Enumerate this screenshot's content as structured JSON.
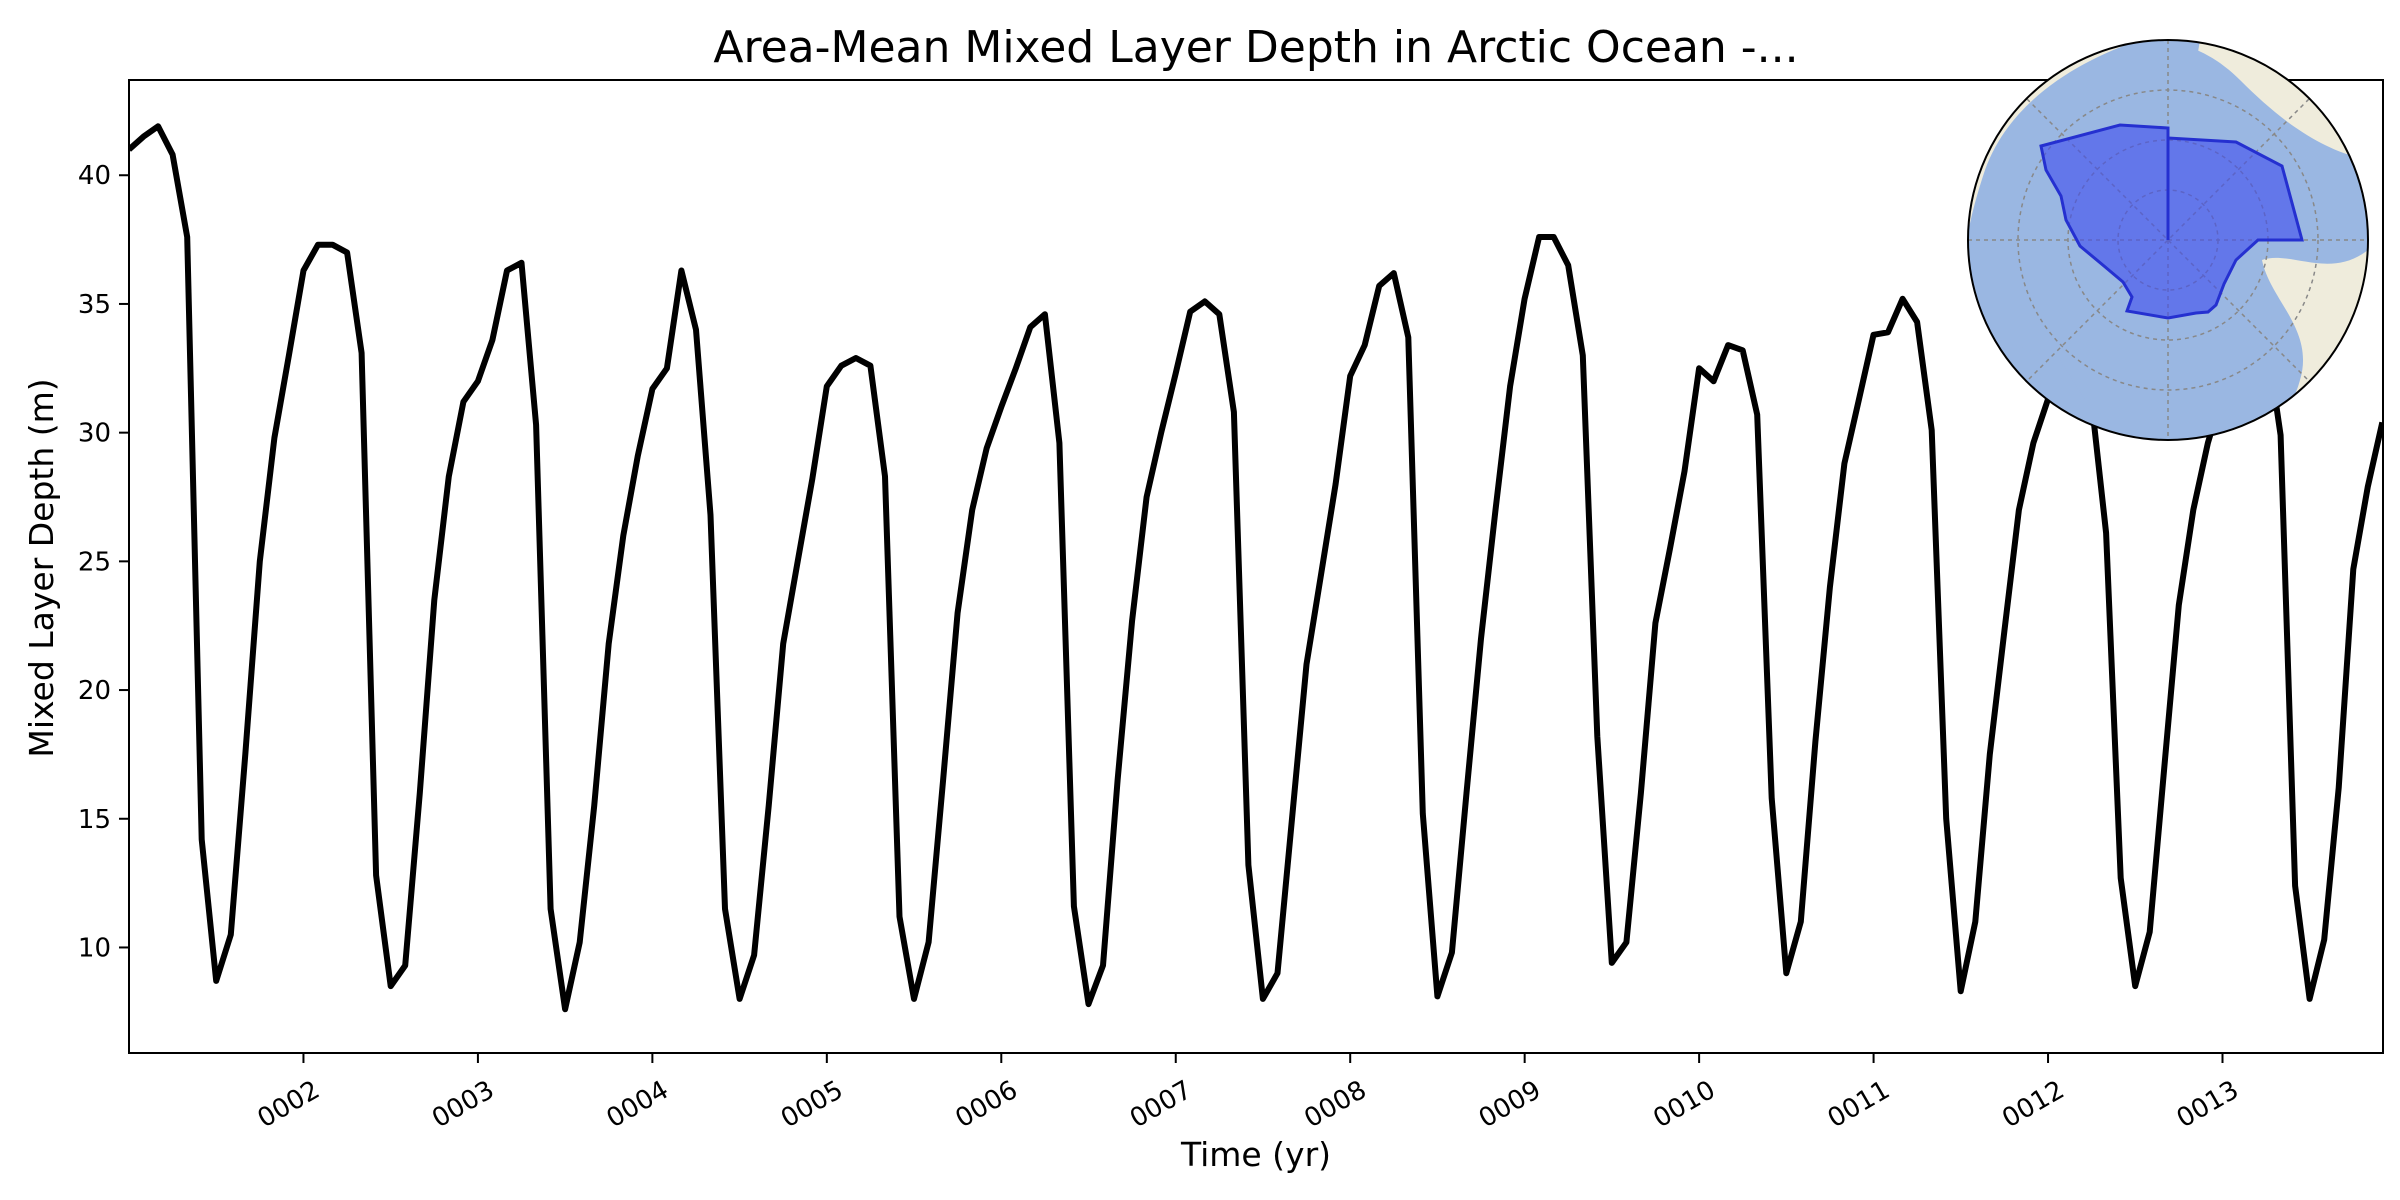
{
  "chart_data": {
    "type": "line",
    "title": "Area-Mean Mixed Layer Depth in Arctic Ocean -...",
    "xlabel": "Time (yr)",
    "ylabel": "Mixed Layer Depth (m)",
    "x_unit": "year",
    "xlim": [
      1.0,
      13.92
    ],
    "ylim": [
      5.9,
      43.7
    ],
    "yticks": [
      10,
      15,
      20,
      25,
      30,
      35,
      40
    ],
    "xticks": [
      2,
      3,
      4,
      5,
      6,
      7,
      8,
      9,
      10,
      11,
      12,
      13
    ],
    "xtick_labels": [
      "0002",
      "0003",
      "0004",
      "0005",
      "0006",
      "0007",
      "0008",
      "0009",
      "0010",
      "0011",
      "0012",
      "0013"
    ],
    "grid": false,
    "line_color": "#000000",
    "x_start": 1.0,
    "x_step": 0.08333,
    "series": [
      {
        "values": [
          41.0,
          41.5,
          41.9,
          40.8,
          37.6,
          14.2,
          8.7,
          10.5,
          17.5,
          25.0,
          29.8,
          33.0,
          36.3,
          37.3,
          37.3,
          37.0,
          33.1,
          12.8,
          8.5,
          9.3,
          16.0,
          23.5,
          28.3,
          31.2,
          32.0,
          33.6,
          36.3,
          36.6,
          30.3,
          11.5,
          7.6,
          10.2,
          15.5,
          21.8,
          26.0,
          29.1,
          31.7,
          32.5,
          36.3,
          34.0,
          26.8,
          11.5,
          8.0,
          9.7,
          15.5,
          21.8,
          25.0,
          28.2,
          31.8,
          32.6,
          32.9,
          32.6,
          28.3,
          11.2,
          8.0,
          10.2,
          16.5,
          23.0,
          27.0,
          29.4,
          31.0,
          32.5,
          34.1,
          34.6,
          29.6,
          11.6,
          7.8,
          9.3,
          16.5,
          22.7,
          27.5,
          30.0,
          32.3,
          34.7,
          35.1,
          34.6,
          30.8,
          13.2,
          8.0,
          9.0,
          15.0,
          21.0,
          24.5,
          28.0,
          32.2,
          33.4,
          35.7,
          36.2,
          33.7,
          15.2,
          8.1,
          9.8,
          16.0,
          22.0,
          27.0,
          31.8,
          35.2,
          37.6,
          37.6,
          36.5,
          33.0,
          18.2,
          9.4,
          10.2,
          16.0,
          22.6,
          25.5,
          28.5,
          32.5,
          32.0,
          33.4,
          33.2,
          30.7,
          15.8,
          9.0,
          11.0,
          18.0,
          24.0,
          28.8,
          31.3,
          33.8,
          33.9,
          35.2,
          34.3,
          30.1,
          15.0,
          8.3,
          11.0,
          17.5,
          22.3,
          27.0,
          29.6,
          31.3,
          32.8,
          33.5,
          31.2,
          26.1,
          12.7,
          8.5,
          10.6,
          17.0,
          23.3,
          27.0,
          29.6,
          31.5,
          33.4,
          34.2,
          33.8,
          29.9,
          12.4,
          8.0,
          10.3,
          16.2,
          24.7,
          27.9,
          30.4
        ]
      }
    ],
    "inset": {
      "type": "polar-map",
      "description_colors": {
        "land": "#efecdc",
        "ocean": "#9ab7e2",
        "region": "#4e5cf0"
      }
    }
  }
}
